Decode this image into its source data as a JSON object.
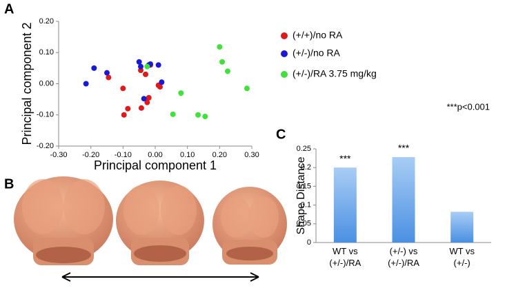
{
  "panel_labels": [
    "A",
    "B",
    "C"
  ],
  "chart_data": [
    {
      "type": "scatter",
      "xlabel": "Principal component 1",
      "ylabel": "Principal component 2",
      "xlim": [
        -0.3,
        0.3
      ],
      "xticks": [
        {
          "value": -0.3,
          "label": "-0.30"
        },
        {
          "value": -0.2,
          "label": "-0.20"
        },
        {
          "value": -0.1,
          "label": "-0.10"
        },
        {
          "value": 0,
          "label": "0.00"
        },
        {
          "value": 0.1,
          "label": "0.10"
        },
        {
          "value": 0.2,
          "label": "0.20"
        },
        {
          "value": 0.3,
          "label": "0.30"
        }
      ],
      "ylim": [
        -0.2,
        0.2
      ],
      "yticks": [
        {
          "value": -0.2,
          "label": "-0.20"
        },
        {
          "value": -0.1,
          "label": "-0.10"
        },
        {
          "value": 0,
          "label": "0.00"
        },
        {
          "value": 0.1,
          "label": "0.10"
        },
        {
          "value": 0.2,
          "label": "0.20"
        }
      ],
      "series": [
        {
          "name": "(+/+)/no RA",
          "color": "#e0191a",
          "x": [
            -0.045,
            -0.03,
            -0.015,
            -0.145,
            -0.1,
            -0.085,
            -0.097,
            -0.043,
            -0.02,
            -0.025,
            0.01,
            0.015
          ],
          "y": [
            0.043,
            0.03,
            0.06,
            0.02,
            -0.015,
            -0.08,
            -0.1,
            -0.078,
            -0.045,
            -0.06,
            -0.005,
            -0.01
          ]
        },
        {
          "name": "(+/-)/no RA",
          "color": "#1a1ad6",
          "x": [
            -0.19,
            -0.15,
            -0.215,
            -0.05,
            -0.045,
            -0.015,
            0.01,
            0.02,
            -0.035,
            -0.02
          ],
          "y": [
            0.05,
            0.035,
            0.0,
            0.07,
            0.055,
            0.063,
            0.06,
            0.005,
            -0.048,
            0.06
          ]
        },
        {
          "name": "(+/-)/RA 3.75 mg/kg",
          "color": "#3ee23a",
          "x": [
            0.2,
            0.208,
            0.225,
            0.285,
            0.08,
            0.055,
            0.133,
            0.155,
            -0.025
          ],
          "y": [
            0.118,
            0.07,
            0.04,
            -0.015,
            -0.03,
            -0.098,
            -0.1,
            -0.105,
            0.055
          ]
        }
      ]
    },
    {
      "type": "bar",
      "annotation": "***p<0.001",
      "ylabel": "Shape Distance",
      "categories": [
        "WT vs\n(+/-)/RA",
        "(+/-) vs\n(+/-)/RA",
        "WT vs\n(+/-)"
      ],
      "values": [
        0.2,
        0.228,
        0.082
      ],
      "significance": [
        "***",
        "***",
        null
      ],
      "color": "#4a90e2",
      "ylim": [
        0,
        0.25
      ],
      "yticks": [
        0,
        0.05,
        0.1,
        0.15,
        0.2,
        0.25
      ]
    }
  ]
}
